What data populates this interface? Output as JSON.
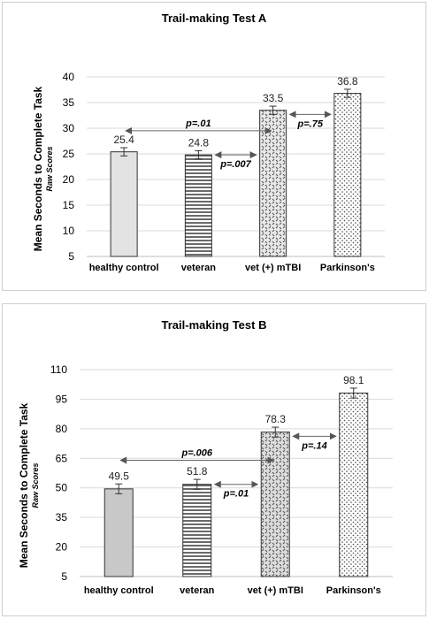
{
  "chart_data": [
    {
      "type": "bar",
      "title": "Trail-making Test A",
      "ylabel": "Mean Seconds to Complete Task",
      "ylabel_sub": "Raw Scores",
      "categories": [
        "healthy control",
        "veteran",
        "vet (+) mTBI",
        "Parkinson's"
      ],
      "values": [
        25.4,
        24.8,
        33.5,
        36.8
      ],
      "value_labels": [
        "25.4",
        "24.8",
        "33.5",
        "36.8"
      ],
      "errors": [
        0.8,
        0.8,
        0.8,
        0.8
      ],
      "patterns": [
        "solid-light",
        "horizontal-stripes",
        "diagonal-dashes",
        "dots"
      ],
      "ylim": [
        5,
        40
      ],
      "yticks": [
        5,
        10,
        15,
        20,
        25,
        30,
        35,
        40
      ],
      "grid": true,
      "comparisons": [
        {
          "from": 0,
          "to": 2,
          "label": "p=.01",
          "y": 29.5
        },
        {
          "from": 1,
          "to": 2,
          "label": "p=.007",
          "y": 24.8
        },
        {
          "from": 2,
          "to": 3,
          "label": "p=.75",
          "y": 32.7
        }
      ]
    },
    {
      "type": "bar",
      "title": "Trail-making Test B",
      "ylabel": "Mean Seconds to Complete Task",
      "ylabel_sub": "Raw Scores",
      "categories": [
        "healthy control",
        "veteran",
        "vet (+) mTBI",
        "Parkinson's"
      ],
      "values": [
        49.5,
        51.8,
        78.3,
        98.1
      ],
      "value_labels": [
        "49.5",
        "51.8",
        "78.3",
        "98.1"
      ],
      "errors": [
        2.5,
        2.5,
        2.5,
        2.5
      ],
      "patterns": [
        "solid-gray",
        "horizontal-stripes",
        "diagonal-dashes",
        "dots"
      ],
      "ylim": [
        5,
        110
      ],
      "yticks": [
        5,
        20,
        35,
        50,
        65,
        80,
        95,
        110
      ],
      "grid": true,
      "comparisons": [
        {
          "from": 0,
          "to": 2,
          "label": "p=.006",
          "y": 64
        },
        {
          "from": 1,
          "to": 2,
          "label": "p=.01",
          "y": 51.8
        },
        {
          "from": 2,
          "to": 3,
          "label": "p=.14",
          "y": 76.2
        }
      ]
    }
  ]
}
